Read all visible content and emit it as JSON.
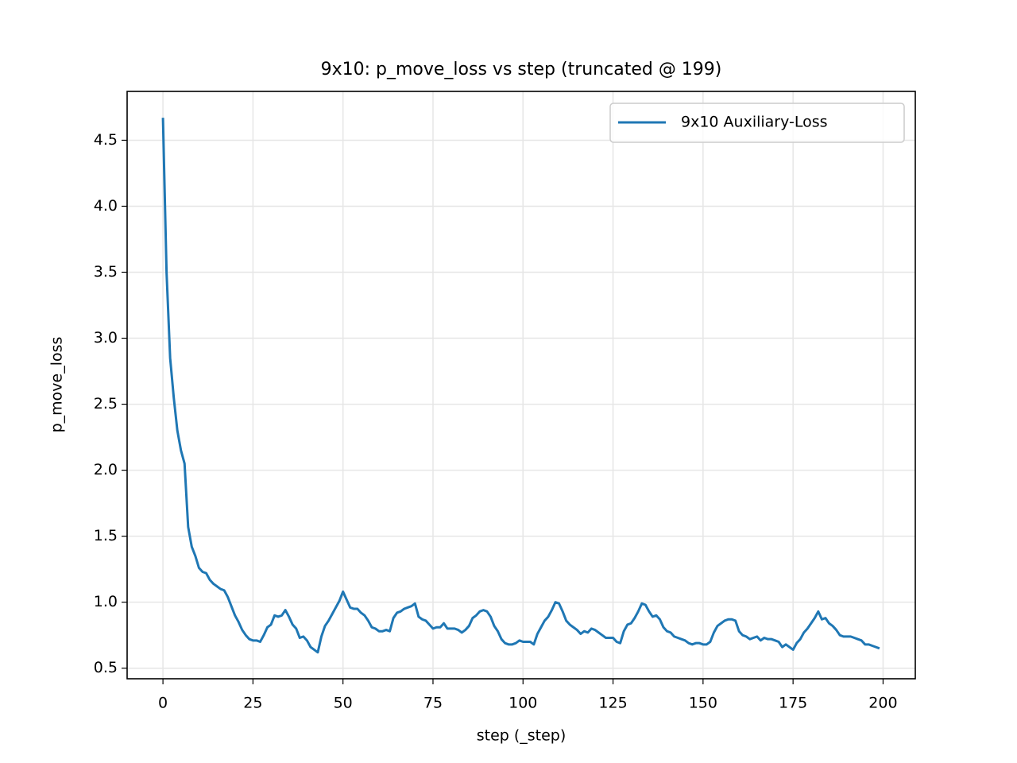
{
  "chart_data": {
    "type": "line",
    "title": "9x10: p_move_loss vs step (truncated @ 199)",
    "xlabel": "step (_step)",
    "ylabel": "p_move_loss",
    "x": [
      0,
      1,
      2,
      3,
      4,
      5,
      6,
      7,
      8,
      9,
      10,
      11,
      12,
      13,
      14,
      15,
      16,
      17,
      18,
      19,
      20,
      21,
      22,
      23,
      24,
      25,
      26,
      27,
      28,
      29,
      30,
      31,
      32,
      33,
      34,
      35,
      36,
      37,
      38,
      39,
      40,
      41,
      42,
      43,
      44,
      45,
      46,
      47,
      48,
      49,
      50,
      51,
      52,
      53,
      54,
      55,
      56,
      57,
      58,
      59,
      60,
      61,
      62,
      63,
      64,
      65,
      66,
      67,
      68,
      69,
      70,
      71,
      72,
      73,
      74,
      75,
      76,
      77,
      78,
      79,
      80,
      81,
      82,
      83,
      84,
      85,
      86,
      87,
      88,
      89,
      90,
      91,
      92,
      93,
      94,
      95,
      96,
      97,
      98,
      99,
      100,
      101,
      102,
      103,
      104,
      105,
      106,
      107,
      108,
      109,
      110,
      111,
      112,
      113,
      114,
      115,
      116,
      117,
      118,
      119,
      120,
      121,
      122,
      123,
      124,
      125,
      126,
      127,
      128,
      129,
      130,
      131,
      132,
      133,
      134,
      135,
      136,
      137,
      138,
      139,
      140,
      141,
      142,
      143,
      144,
      145,
      146,
      147,
      148,
      149,
      150,
      151,
      152,
      153,
      154,
      155,
      156,
      157,
      158,
      159,
      160,
      161,
      162,
      163,
      164,
      165,
      166,
      167,
      168,
      169,
      170,
      171,
      172,
      173,
      174,
      175,
      176,
      177,
      178,
      179,
      180,
      181,
      182,
      183,
      184,
      185,
      186,
      187,
      188,
      189,
      190,
      191,
      192,
      193,
      194,
      195,
      196,
      197,
      198,
      199
    ],
    "series": [
      {
        "name": "9x10 Auxiliary-Loss",
        "color": "#1f77b4",
        "values": [
          4.67,
          3.5,
          2.85,
          2.55,
          2.3,
          2.15,
          2.05,
          1.57,
          1.42,
          1.35,
          1.26,
          1.23,
          1.22,
          1.17,
          1.14,
          1.12,
          1.1,
          1.09,
          1.04,
          0.97,
          0.9,
          0.85,
          0.79,
          0.75,
          0.72,
          0.71,
          0.71,
          0.7,
          0.75,
          0.81,
          0.83,
          0.9,
          0.89,
          0.9,
          0.94,
          0.89,
          0.83,
          0.8,
          0.73,
          0.74,
          0.71,
          0.66,
          0.64,
          0.62,
          0.74,
          0.82,
          0.86,
          0.91,
          0.96,
          1.01,
          1.08,
          1.02,
          0.96,
          0.95,
          0.95,
          0.92,
          0.9,
          0.86,
          0.81,
          0.8,
          0.78,
          0.78,
          0.79,
          0.78,
          0.88,
          0.92,
          0.93,
          0.95,
          0.96,
          0.97,
          0.99,
          0.89,
          0.87,
          0.86,
          0.83,
          0.8,
          0.81,
          0.81,
          0.84,
          0.8,
          0.8,
          0.8,
          0.79,
          0.77,
          0.79,
          0.82,
          0.88,
          0.9,
          0.93,
          0.94,
          0.93,
          0.89,
          0.82,
          0.78,
          0.72,
          0.69,
          0.68,
          0.68,
          0.69,
          0.71,
          0.7,
          0.7,
          0.7,
          0.68,
          0.76,
          0.81,
          0.86,
          0.89,
          0.94,
          1.0,
          0.99,
          0.93,
          0.86,
          0.83,
          0.81,
          0.79,
          0.76,
          0.78,
          0.77,
          0.8,
          0.79,
          0.77,
          0.75,
          0.73,
          0.73,
          0.73,
          0.7,
          0.69,
          0.78,
          0.83,
          0.84,
          0.88,
          0.93,
          0.99,
          0.98,
          0.93,
          0.89,
          0.9,
          0.87,
          0.81,
          0.78,
          0.77,
          0.74,
          0.73,
          0.72,
          0.71,
          0.69,
          0.68,
          0.69,
          0.69,
          0.68,
          0.68,
          0.7,
          0.77,
          0.82,
          0.84,
          0.86,
          0.87,
          0.87,
          0.86,
          0.78,
          0.75,
          0.74,
          0.72,
          0.73,
          0.74,
          0.71,
          0.73,
          0.72,
          0.72,
          0.71,
          0.7,
          0.66,
          0.68,
          0.66,
          0.64,
          0.69,
          0.72,
          0.77,
          0.8,
          0.84,
          0.88,
          0.93,
          0.87,
          0.88,
          0.84,
          0.82,
          0.79,
          0.75,
          0.74,
          0.74,
          0.74,
          0.73,
          0.72,
          0.71,
          0.68,
          0.68,
          0.67,
          0.66,
          0.65
        ]
      }
    ],
    "xlim": [
      -9.95,
      208.95
    ],
    "ylim": [
      0.42,
      4.87
    ],
    "xticks": [
      0,
      25,
      50,
      75,
      100,
      125,
      150,
      175,
      200
    ],
    "yticks": [
      0.5,
      {
        "value": 1,
        "label": "1.0"
      },
      1.5,
      {
        "value": 2,
        "label": "2.0"
      },
      2.5,
      {
        "value": 3,
        "label": "3.0"
      },
      3.5,
      {
        "value": 4,
        "label": "4.0"
      },
      4.5
    ],
    "grid": true,
    "legend": "upper right"
  }
}
